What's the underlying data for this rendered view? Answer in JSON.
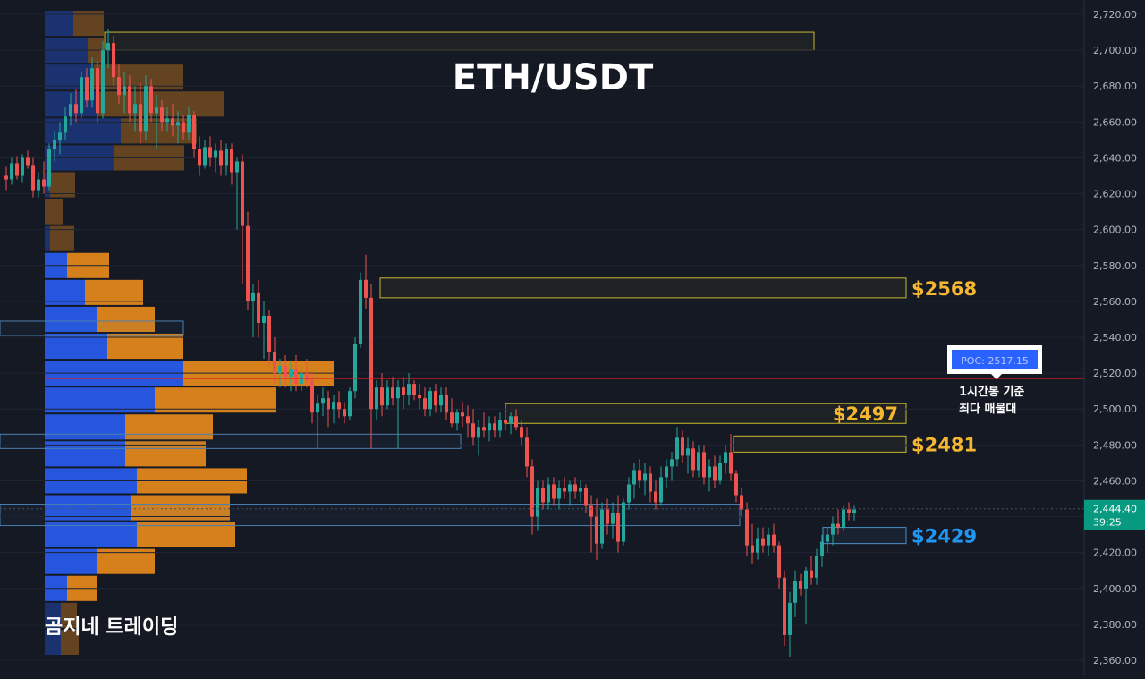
{
  "chart_data": {
    "type": "candlestick",
    "title": "ETH/USDT",
    "watermark": "곰지네 트레이딩",
    "y_axis": {
      "min": 2360,
      "max": 2720,
      "step": 20,
      "tick_labels": [
        "2,720.00",
        "2,700.00",
        "2,680.00",
        "2,660.00",
        "2,640.00",
        "2,620.00",
        "2,600.00",
        "2,580.00",
        "2,560.00",
        "2,540.00",
        "2,520.00",
        "2,500.00",
        "2,480.00",
        "2,460.00",
        "2,440.00",
        "2,420.00",
        "2,400.00",
        "2,380.00",
        "2,360.00"
      ]
    },
    "current_price": {
      "value": 2444.4,
      "label": "2,444.40",
      "countdown": "39:25",
      "color": "#089981"
    },
    "poc": {
      "value": 2517.15,
      "label": "POC: 2517.15",
      "note_line1": "1시간봉 기준",
      "note_line2": "최다 매물대",
      "line_color": "#e02020",
      "box_color": "#2962ff"
    },
    "zones": [
      {
        "kind": "supply",
        "top": 2710,
        "bottom": 2700,
        "label": ""
      },
      {
        "kind": "supply",
        "top": 2573,
        "bottom": 2562,
        "label": "$2568",
        "label_color": "#f5b731"
      },
      {
        "kind": "supply",
        "top": 2503,
        "bottom": 2492,
        "label": "$2497",
        "label_color": "#f5b731"
      },
      {
        "kind": "supply",
        "top": 2485,
        "bottom": 2476,
        "label": "$2481",
        "label_color": "#f5b731"
      },
      {
        "kind": "demand",
        "top": 2434,
        "bottom": 2425,
        "label": "$2429",
        "label_color": "#2196f3"
      }
    ],
    "volume_profile": [
      {
        "price": 2715,
        "buy": 32,
        "sell": 34
      },
      {
        "price": 2700,
        "buy": 48,
        "sell": 18
      },
      {
        "price": 2685,
        "buy": 55,
        "sell": 100
      },
      {
        "price": 2670,
        "buy": 60,
        "sell": 140
      },
      {
        "price": 2655,
        "buy": 85,
        "sell": 85
      },
      {
        "price": 2640,
        "buy": 78,
        "sell": 78
      },
      {
        "price": 2625,
        "buy": 6,
        "sell": 28
      },
      {
        "price": 2610,
        "buy": 0,
        "sell": 20
      },
      {
        "price": 2595,
        "buy": 6,
        "sell": 27
      },
      {
        "price": 2580,
        "buy": 25,
        "sell": 47
      },
      {
        "price": 2565,
        "buy": 45,
        "sell": 65
      },
      {
        "price": 2550,
        "buy": 58,
        "sell": 65
      },
      {
        "price": 2535,
        "buy": 70,
        "sell": 85
      },
      {
        "price": 2520,
        "buy": 155,
        "sell": 168
      },
      {
        "price": 2505,
        "buy": 123,
        "sell": 135
      },
      {
        "price": 2490,
        "buy": 90,
        "sell": 98
      },
      {
        "price": 2475,
        "buy": 90,
        "sell": 90
      },
      {
        "price": 2460,
        "buy": 103,
        "sell": 123
      },
      {
        "price": 2445,
        "buy": 97,
        "sell": 110
      },
      {
        "price": 2430,
        "buy": 103,
        "sell": 110
      },
      {
        "price": 2415,
        "buy": 58,
        "sell": 65
      },
      {
        "price": 2400,
        "buy": 25,
        "sell": 33
      },
      {
        "price": 2385,
        "buy": 18,
        "sell": 18
      },
      {
        "price": 2370,
        "buy": 18,
        "sell": 20
      }
    ],
    "candles": [
      [
        2630,
        2635,
        2622,
        2628
      ],
      [
        2628,
        2640,
        2625,
        2637
      ],
      [
        2637,
        2641,
        2628,
        2630
      ],
      [
        2630,
        2642,
        2626,
        2640
      ],
      [
        2640,
        2644,
        2634,
        2636
      ],
      [
        2636,
        2640,
        2618,
        2622
      ],
      [
        2622,
        2632,
        2618,
        2628
      ],
      [
        2628,
        2638,
        2620,
        2624
      ],
      [
        2624,
        2648,
        2622,
        2645
      ],
      [
        2645,
        2655,
        2638,
        2650
      ],
      [
        2650,
        2660,
        2642,
        2654
      ],
      [
        2654,
        2668,
        2650,
        2663
      ],
      [
        2663,
        2676,
        2658,
        2670
      ],
      [
        2670,
        2678,
        2660,
        2665
      ],
      [
        2665,
        2688,
        2662,
        2685
      ],
      [
        2685,
        2690,
        2668,
        2672
      ],
      [
        2672,
        2696,
        2668,
        2690
      ],
      [
        2690,
        2694,
        2660,
        2665
      ],
      [
        2665,
        2705,
        2662,
        2700
      ],
      [
        2700,
        2712,
        2690,
        2704
      ],
      [
        2704,
        2708,
        2680,
        2685
      ],
      [
        2685,
        2692,
        2670,
        2675
      ],
      [
        2675,
        2688,
        2665,
        2680
      ],
      [
        2680,
        2686,
        2660,
        2665
      ],
      [
        2665,
        2680,
        2655,
        2670
      ],
      [
        2670,
        2682,
        2648,
        2655
      ],
      [
        2655,
        2686,
        2650,
        2680
      ],
      [
        2680,
        2684,
        2660,
        2665
      ],
      [
        2665,
        2675,
        2645,
        2668
      ],
      [
        2668,
        2672,
        2655,
        2660
      ],
      [
        2660,
        2668,
        2655,
        2662
      ],
      [
        2662,
        2670,
        2652,
        2658
      ],
      [
        2658,
        2666,
        2648,
        2660
      ],
      [
        2660,
        2664,
        2650,
        2654
      ],
      [
        2654,
        2668,
        2650,
        2664
      ],
      [
        2664,
        2666,
        2640,
        2645
      ],
      [
        2645,
        2652,
        2630,
        2636
      ],
      [
        2636,
        2650,
        2634,
        2646
      ],
      [
        2646,
        2652,
        2635,
        2640
      ],
      [
        2640,
        2648,
        2632,
        2644
      ],
      [
        2644,
        2650,
        2630,
        2636
      ],
      [
        2636,
        2648,
        2630,
        2645
      ],
      [
        2645,
        2648,
        2625,
        2632
      ],
      [
        2632,
        2640,
        2600,
        2638
      ],
      [
        2638,
        2642,
        2570,
        2602
      ],
      [
        2602,
        2610,
        2555,
        2560
      ],
      [
        2560,
        2570,
        2540,
        2565
      ],
      [
        2565,
        2572,
        2540,
        2548
      ],
      [
        2548,
        2560,
        2528,
        2552
      ],
      [
        2552,
        2555,
        2524,
        2532
      ],
      [
        2532,
        2540,
        2514,
        2520
      ],
      [
        2520,
        2528,
        2512,
        2524
      ],
      [
        2524,
        2530,
        2512,
        2518
      ],
      [
        2518,
        2526,
        2510,
        2522
      ],
      [
        2522,
        2530,
        2510,
        2514
      ],
      [
        2514,
        2524,
        2510,
        2520
      ],
      [
        2520,
        2528,
        2512,
        2516
      ],
      [
        2516,
        2520,
        2492,
        2498
      ],
      [
        2498,
        2508,
        2478,
        2503
      ],
      [
        2503,
        2512,
        2496,
        2506
      ],
      [
        2506,
        2510,
        2490,
        2500
      ],
      [
        2500,
        2508,
        2492,
        2504
      ],
      [
        2504,
        2510,
        2495,
        2500
      ],
      [
        2500,
        2504,
        2492,
        2496
      ],
      [
        2496,
        2512,
        2494,
        2510
      ],
      [
        2510,
        2540,
        2506,
        2536
      ],
      [
        2536,
        2576,
        2534,
        2572
      ],
      [
        2572,
        2586,
        2556,
        2562
      ],
      [
        2562,
        2570,
        2478,
        2500
      ],
      [
        2500,
        2516,
        2494,
        2512
      ],
      [
        2512,
        2520,
        2496,
        2502
      ],
      [
        2502,
        2516,
        2500,
        2512
      ],
      [
        2512,
        2518,
        2502,
        2506
      ],
      [
        2506,
        2516,
        2478,
        2512
      ],
      [
        2512,
        2518,
        2500,
        2508
      ],
      [
        2508,
        2520,
        2502,
        2514
      ],
      [
        2514,
        2516,
        2505,
        2508
      ],
      [
        2508,
        2514,
        2500,
        2506
      ],
      [
        2506,
        2512,
        2496,
        2500
      ],
      [
        2500,
        2512,
        2496,
        2510
      ],
      [
        2510,
        2514,
        2498,
        2502
      ],
      [
        2502,
        2512,
        2498,
        2508
      ],
      [
        2508,
        2512,
        2494,
        2498
      ],
      [
        2498,
        2506,
        2490,
        2492
      ],
      [
        2492,
        2500,
        2488,
        2498
      ],
      [
        2498,
        2504,
        2490,
        2496
      ],
      [
        2496,
        2502,
        2484,
        2492
      ],
      [
        2492,
        2500,
        2480,
        2484
      ],
      [
        2484,
        2494,
        2474,
        2490
      ],
      [
        2490,
        2498,
        2484,
        2488
      ],
      [
        2488,
        2496,
        2482,
        2492
      ],
      [
        2492,
        2496,
        2484,
        2488
      ],
      [
        2488,
        2498,
        2484,
        2494
      ],
      [
        2494,
        2498,
        2488,
        2492
      ],
      [
        2492,
        2498,
        2486,
        2496
      ],
      [
        2496,
        2500,
        2488,
        2490
      ],
      [
        2490,
        2494,
        2480,
        2484
      ],
      [
        2484,
        2490,
        2462,
        2468
      ],
      [
        2468,
        2472,
        2430,
        2440
      ],
      [
        2440,
        2460,
        2432,
        2456
      ],
      [
        2456,
        2460,
        2444,
        2448
      ],
      [
        2448,
        2462,
        2444,
        2458
      ],
      [
        2458,
        2462,
        2446,
        2450
      ],
      [
        2450,
        2460,
        2444,
        2456
      ],
      [
        2456,
        2462,
        2450,
        2454
      ],
      [
        2454,
        2460,
        2446,
        2458
      ],
      [
        2458,
        2462,
        2450,
        2454
      ],
      [
        2454,
        2460,
        2448,
        2456
      ],
      [
        2456,
        2458,
        2442,
        2446
      ],
      [
        2446,
        2452,
        2420,
        2440
      ],
      [
        2440,
        2450,
        2416,
        2425
      ],
      [
        2425,
        2448,
        2422,
        2444
      ],
      [
        2444,
        2450,
        2430,
        2436
      ],
      [
        2436,
        2448,
        2428,
        2442
      ],
      [
        2442,
        2452,
        2420,
        2426
      ],
      [
        2426,
        2450,
        2424,
        2448
      ],
      [
        2448,
        2462,
        2444,
        2458
      ],
      [
        2458,
        2470,
        2450,
        2466
      ],
      [
        2466,
        2472,
        2456,
        2460
      ],
      [
        2460,
        2470,
        2452,
        2464
      ],
      [
        2464,
        2468,
        2448,
        2454
      ],
      [
        2454,
        2460,
        2444,
        2448
      ],
      [
        2448,
        2468,
        2446,
        2462
      ],
      [
        2462,
        2472,
        2456,
        2468
      ],
      [
        2468,
        2476,
        2460,
        2472
      ],
      [
        2472,
        2490,
        2468,
        2484
      ],
      [
        2484,
        2488,
        2470,
        2474
      ],
      [
        2474,
        2484,
        2464,
        2478
      ],
      [
        2478,
        2482,
        2462,
        2466
      ],
      [
        2466,
        2480,
        2462,
        2476
      ],
      [
        2476,
        2480,
        2458,
        2462
      ],
      [
        2462,
        2472,
        2454,
        2468
      ],
      [
        2468,
        2474,
        2456,
        2460
      ],
      [
        2460,
        2474,
        2458,
        2470
      ],
      [
        2470,
        2480,
        2464,
        2476
      ],
      [
        2476,
        2486,
        2460,
        2464
      ],
      [
        2464,
        2466,
        2448,
        2452
      ],
      [
        2452,
        2456,
        2440,
        2444
      ],
      [
        2444,
        2448,
        2418,
        2424
      ],
      [
        2424,
        2436,
        2414,
        2420
      ],
      [
        2420,
        2434,
        2416,
        2428
      ],
      [
        2428,
        2434,
        2420,
        2424
      ],
      [
        2424,
        2434,
        2418,
        2430
      ],
      [
        2430,
        2436,
        2420,
        2424
      ],
      [
        2424,
        2426,
        2400,
        2406
      ],
      [
        2406,
        2410,
        2368,
        2374
      ],
      [
        2374,
        2398,
        2362,
        2392
      ],
      [
        2392,
        2410,
        2384,
        2404
      ],
      [
        2404,
        2408,
        2396,
        2400
      ],
      [
        2400,
        2412,
        2380,
        2410
      ],
      [
        2410,
        2418,
        2402,
        2406
      ],
      [
        2406,
        2422,
        2402,
        2418
      ],
      [
        2418,
        2430,
        2412,
        2426
      ],
      [
        2426,
        2434,
        2420,
        2430
      ],
      [
        2430,
        2440,
        2424,
        2436
      ],
      [
        2436,
        2444,
        2430,
        2434
      ],
      [
        2434,
        2446,
        2432,
        2444
      ],
      [
        2444,
        2448,
        2438,
        2442
      ],
      [
        2442,
        2446,
        2438,
        2444
      ]
    ]
  }
}
